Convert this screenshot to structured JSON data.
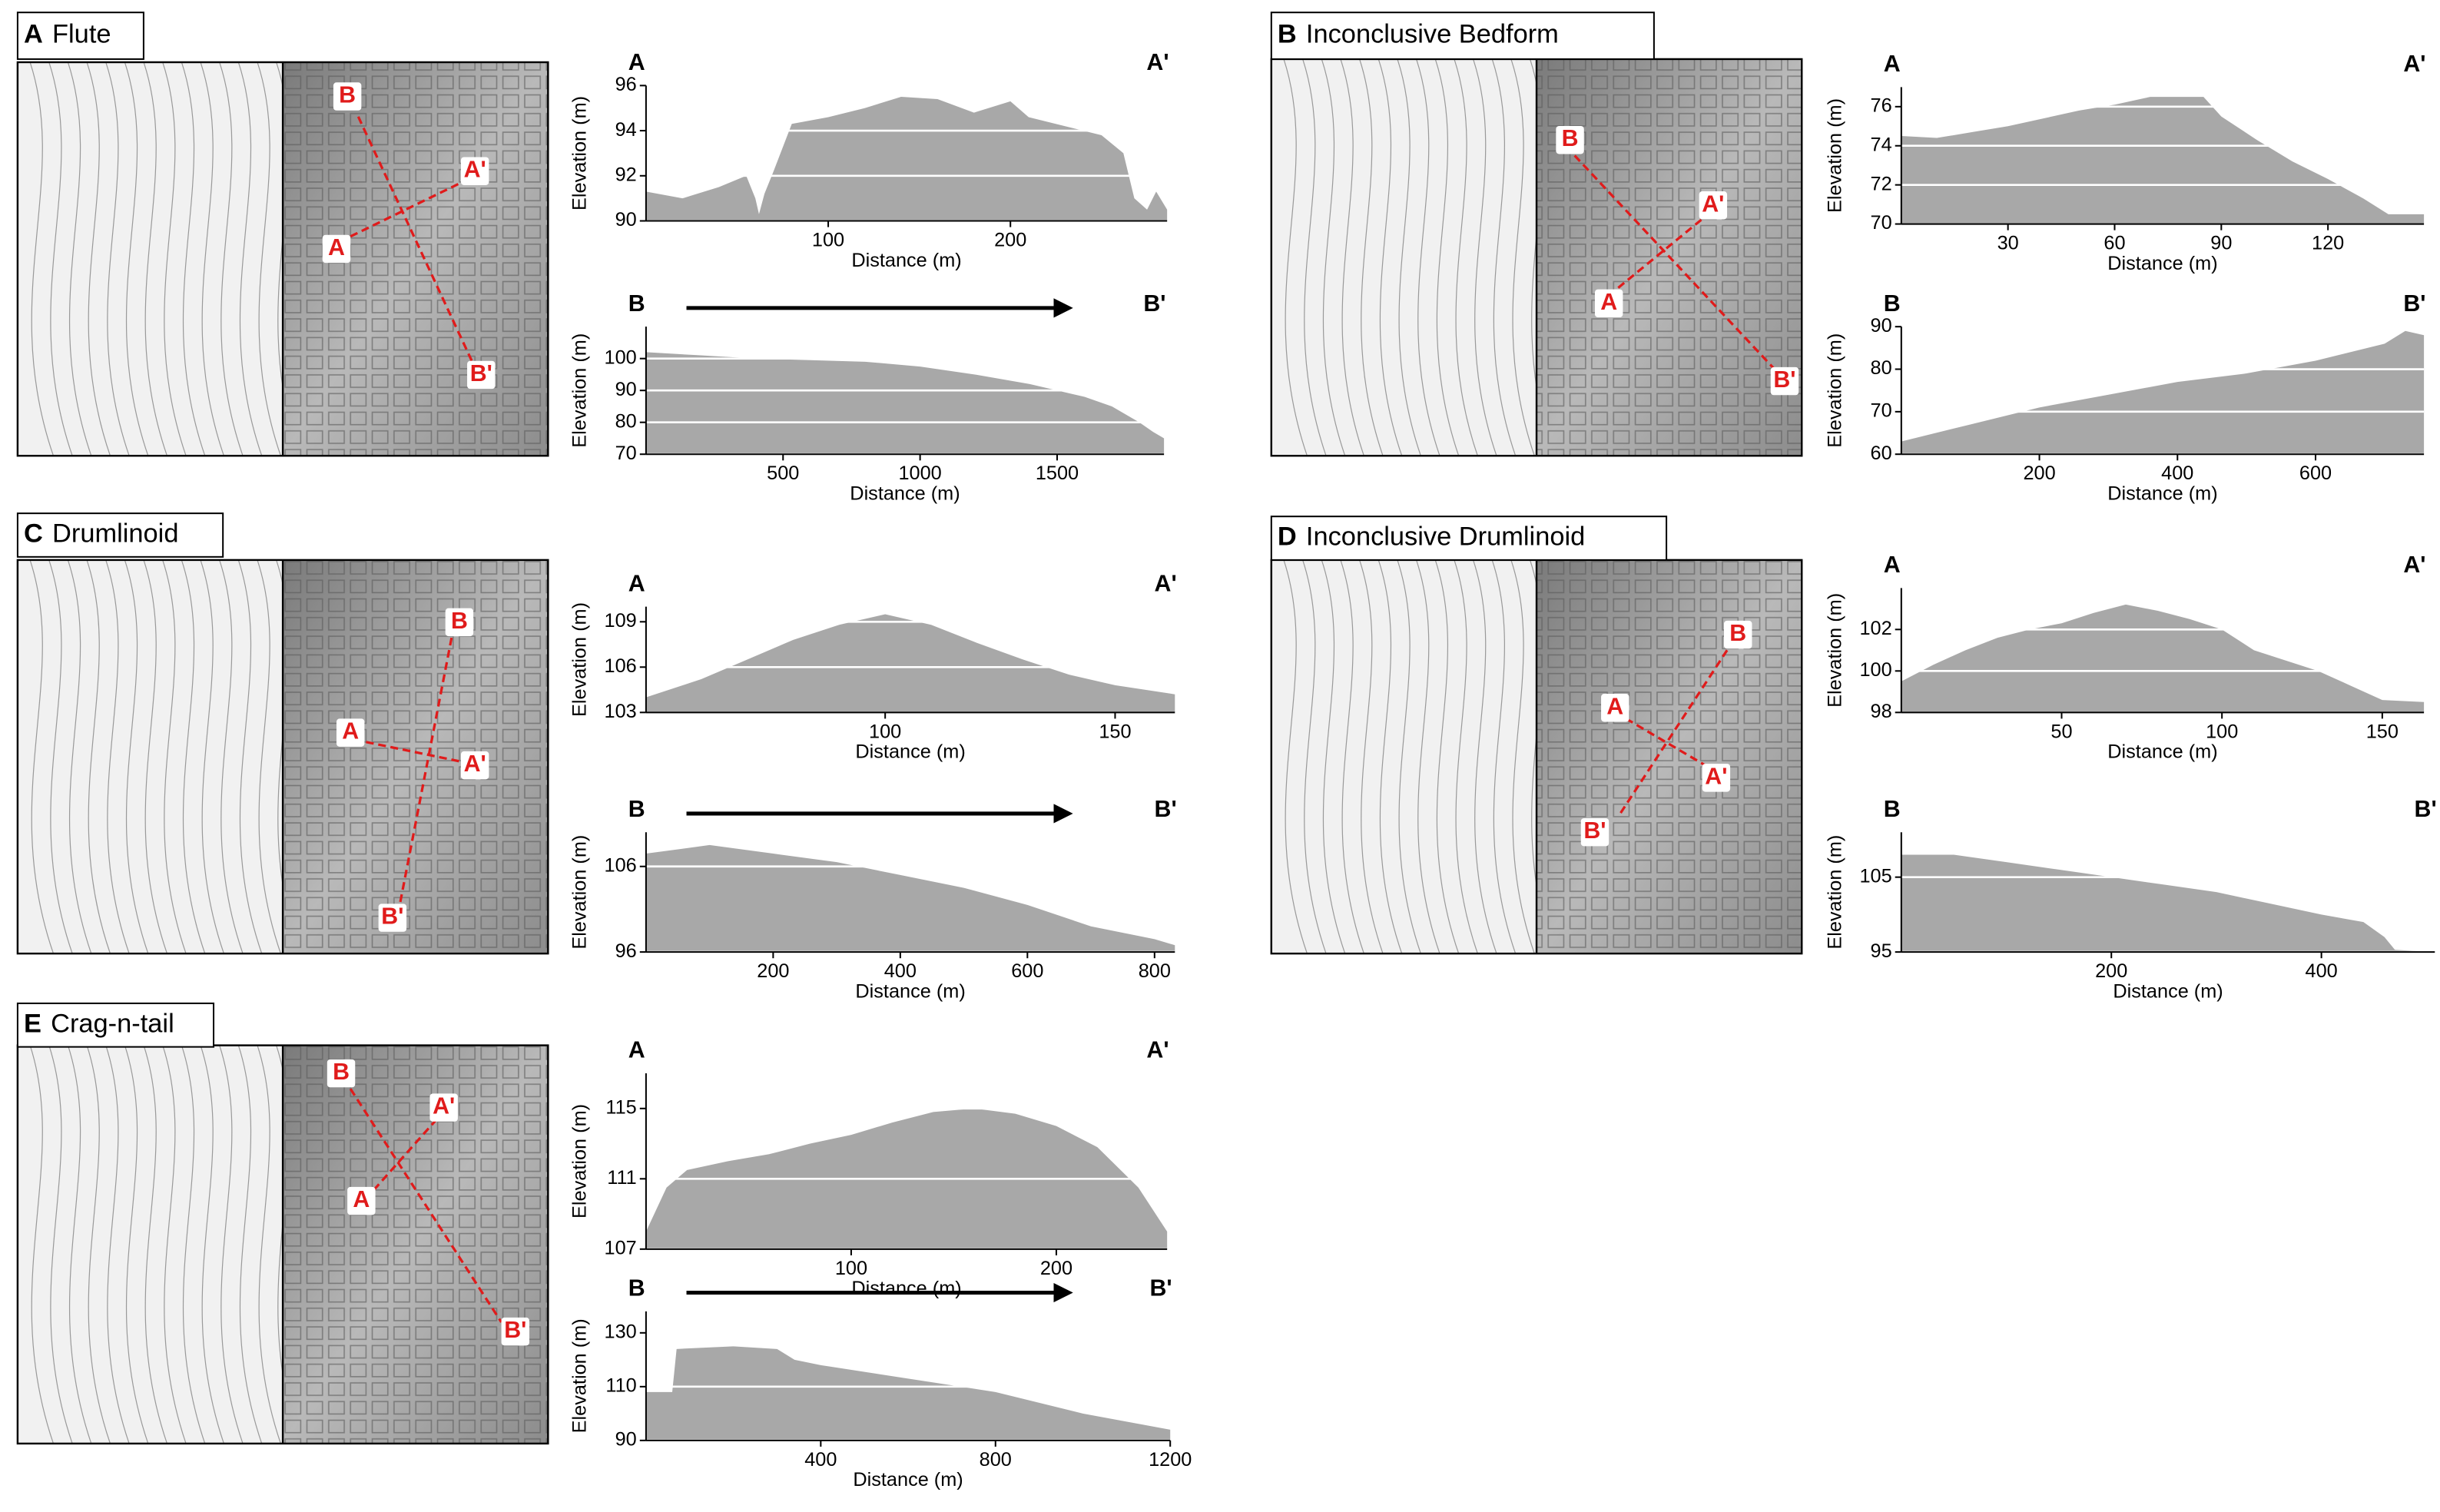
{
  "panels": [
    {
      "letter": "A",
      "title": "Flute",
      "map_labels": [
        "A",
        "A'",
        "B",
        "B'"
      ]
    },
    {
      "letter": "B",
      "title": "Inconclusive Bedform",
      "map_labels": [
        "A",
        "A'",
        "B",
        "B'"
      ]
    },
    {
      "letter": "C",
      "title": "Drumlinoid",
      "map_labels": [
        "A",
        "A'",
        "B",
        "B'"
      ]
    },
    {
      "letter": "D",
      "title": "Inconclusive Drumlinoid",
      "map_labels": [
        "A",
        "A'",
        "B",
        "B'"
      ]
    },
    {
      "letter": "E",
      "title": "Crag-n-tail",
      "map_labels": [
        "A",
        "A'",
        "B",
        "B'"
      ]
    }
  ],
  "chart_data": [
    {
      "type": "area",
      "start_label": "A",
      "end_label": "A'",
      "direction_arrow": false,
      "x_label": "Distance (m)",
      "y_label": "Elevation (m)",
      "color": "#a8a8a8",
      "grid": true,
      "x": [
        0,
        20,
        40,
        55,
        60,
        62,
        65,
        70,
        80,
        100,
        120,
        140,
        160,
        180,
        200,
        210,
        230,
        250,
        262,
        268,
        275,
        280,
        286
      ],
      "values": [
        91.3,
        91.0,
        91.5,
        92.0,
        91.0,
        90.3,
        91.2,
        92.2,
        94.3,
        94.6,
        95.0,
        95.5,
        95.4,
        94.8,
        95.3,
        94.6,
        94.2,
        93.8,
        93.0,
        91.0,
        90.5,
        91.3,
        90.5
      ],
      "xlim": [
        0,
        286
      ],
      "ylim": [
        90,
        96
      ],
      "xticks": [
        100,
        200
      ],
      "yticks": [
        90,
        92,
        94,
        96
      ]
    },
    {
      "type": "area",
      "start_label": "B",
      "end_label": "B'",
      "direction_arrow": true,
      "x_label": "Distance (m)",
      "y_label": "Elevation (m)",
      "color": "#a8a8a8",
      "grid": true,
      "x": [
        0,
        200,
        400,
        600,
        800,
        1000,
        1200,
        1400,
        1600,
        1700,
        1800,
        1850,
        1890
      ],
      "values": [
        102,
        101,
        100,
        99.5,
        99,
        97.5,
        95,
        92,
        88,
        85,
        80,
        77,
        75
      ],
      "xlim": [
        0,
        1890
      ],
      "ylim": [
        70,
        110
      ],
      "xticks": [
        500,
        1000,
        1500
      ],
      "yticks": [
        70,
        80,
        90,
        100
      ]
    },
    {
      "type": "area",
      "start_label": "A",
      "end_label": "A'",
      "direction_arrow": false,
      "x_label": "Distance (m)",
      "y_label": "Elevation (m)",
      "color": "#a8a8a8",
      "grid": true,
      "x": [
        0,
        10,
        20,
        30,
        40,
        50,
        60,
        70,
        85,
        90,
        100,
        110,
        120,
        130,
        137,
        147
      ],
      "values": [
        74.5,
        74.4,
        74.7,
        75.0,
        75.4,
        75.8,
        76.1,
        76.5,
        76.5,
        75.5,
        74.3,
        73.2,
        72.3,
        71.3,
        70.5,
        70.5
      ],
      "xlim": [
        0,
        147
      ],
      "ylim": [
        70,
        77
      ],
      "xticks": [
        30,
        60,
        90,
        120
      ],
      "yticks": [
        70,
        72,
        74,
        76
      ]
    },
    {
      "type": "area",
      "start_label": "B",
      "end_label": "B'",
      "direction_arrow": false,
      "x_label": "Distance (m)",
      "y_label": "Elevation (m)",
      "color": "#a8a8a8",
      "grid": true,
      "x": [
        0,
        100,
        200,
        300,
        400,
        500,
        600,
        700,
        730,
        757
      ],
      "values": [
        63,
        67,
        71,
        74,
        77,
        79,
        82,
        86,
        89,
        88
      ],
      "xlim": [
        0,
        757
      ],
      "ylim": [
        60,
        90
      ],
      "xticks": [
        200,
        400,
        600
      ],
      "yticks": [
        60,
        70,
        80,
        90
      ]
    },
    {
      "type": "area",
      "start_label": "A",
      "end_label": "A'",
      "direction_arrow": false,
      "x_label": "Distance (m)",
      "y_label": "Elevation (m)",
      "color": "#a8a8a8",
      "grid": true,
      "x": [
        48,
        60,
        70,
        80,
        90,
        100,
        110,
        120,
        130,
        140,
        150,
        163
      ],
      "values": [
        104,
        105.2,
        106.5,
        107.8,
        108.8,
        109.5,
        108.8,
        107.6,
        106.5,
        105.5,
        104.8,
        104.2
      ],
      "xlim": [
        48,
        163
      ],
      "ylim": [
        103,
        110
      ],
      "xticks": [
        100,
        150
      ],
      "yticks": [
        103,
        106,
        109
      ]
    },
    {
      "type": "area",
      "start_label": "B",
      "end_label": "B'",
      "direction_arrow": true,
      "x_label": "Distance (m)",
      "y_label": "Elevation (m)",
      "color": "#a8a8a8",
      "grid": true,
      "x": [
        0,
        100,
        200,
        300,
        400,
        500,
        600,
        700,
        800,
        832
      ],
      "values": [
        107.5,
        108.5,
        107.5,
        106.5,
        105,
        103.5,
        101.5,
        99,
        97.5,
        96.8
      ],
      "xlim": [
        0,
        832
      ],
      "ylim": [
        96,
        110
      ],
      "xticks": [
        200,
        400,
        600,
        800
      ],
      "yticks": [
        96,
        106
      ]
    },
    {
      "type": "area",
      "start_label": "A",
      "end_label": "A'",
      "direction_arrow": false,
      "x_label": "Distance (m)",
      "y_label": "Elevation (m)",
      "color": "#a8a8a8",
      "grid": true,
      "x": [
        0,
        10,
        20,
        30,
        40,
        50,
        60,
        70,
        80,
        90,
        100,
        110,
        120,
        130,
        140,
        150,
        163
      ],
      "values": [
        99.5,
        100.3,
        101,
        101.6,
        102,
        102.3,
        102.8,
        103.2,
        102.9,
        102.5,
        102,
        101,
        100.5,
        100,
        99.3,
        98.6,
        98.5
      ],
      "xlim": [
        0,
        163
      ],
      "ylim": [
        98,
        104
      ],
      "xticks": [
        50,
        100,
        150
      ],
      "yticks": [
        98,
        100,
        102
      ]
    },
    {
      "type": "area",
      "start_label": "B",
      "end_label": "B'",
      "direction_arrow": false,
      "x_label": "Distance (m)",
      "y_label": "Elevation (m)",
      "color": "#a8a8a8",
      "grid": true,
      "x": [
        0,
        50,
        100,
        150,
        200,
        250,
        300,
        350,
        400,
        440,
        460,
        470,
        508
      ],
      "values": [
        108,
        108,
        107,
        106,
        105,
        104,
        103,
        101.5,
        100,
        99,
        97,
        95.3,
        95
      ],
      "xlim": [
        0,
        508
      ],
      "ylim": [
        95,
        111
      ],
      "xticks": [
        200,
        400
      ],
      "yticks": [
        95,
        105
      ]
    },
    {
      "type": "area",
      "start_label": "A",
      "end_label": "A'",
      "direction_arrow": false,
      "x_label": "Distance (m)",
      "y_label": "Elevation (m)",
      "color": "#a8a8a8",
      "grid": true,
      "x": [
        0,
        10,
        20,
        40,
        60,
        80,
        100,
        120,
        140,
        160,
        180,
        200,
        220,
        240,
        254
      ],
      "values": [
        108,
        110.5,
        111.5,
        112,
        112.4,
        113,
        113.5,
        114.2,
        114.8,
        115,
        114.7,
        114,
        112.8,
        110.5,
        108
      ],
      "xlim": [
        0,
        254
      ],
      "ylim": [
        107,
        117
      ],
      "xticks": [
        100,
        200
      ],
      "yticks": [
        107,
        111,
        115
      ]
    },
    {
      "type": "area",
      "start_label": "B",
      "end_label": "B'",
      "direction_arrow": true,
      "x_label": "Distance (m)",
      "y_label": "Elevation (m)",
      "color": "#a8a8a8",
      "grid": true,
      "x": [
        0,
        60,
        70,
        200,
        300,
        340,
        400,
        600,
        800,
        1000,
        1200
      ],
      "values": [
        108,
        108,
        124,
        125,
        124,
        120,
        118,
        113,
        108,
        100,
        94
      ],
      "xlim": [
        0,
        1200
      ],
      "ylim": [
        90,
        138
      ],
      "xticks": [
        400,
        800,
        1200
      ],
      "yticks": [
        90,
        110,
        130
      ]
    }
  ]
}
